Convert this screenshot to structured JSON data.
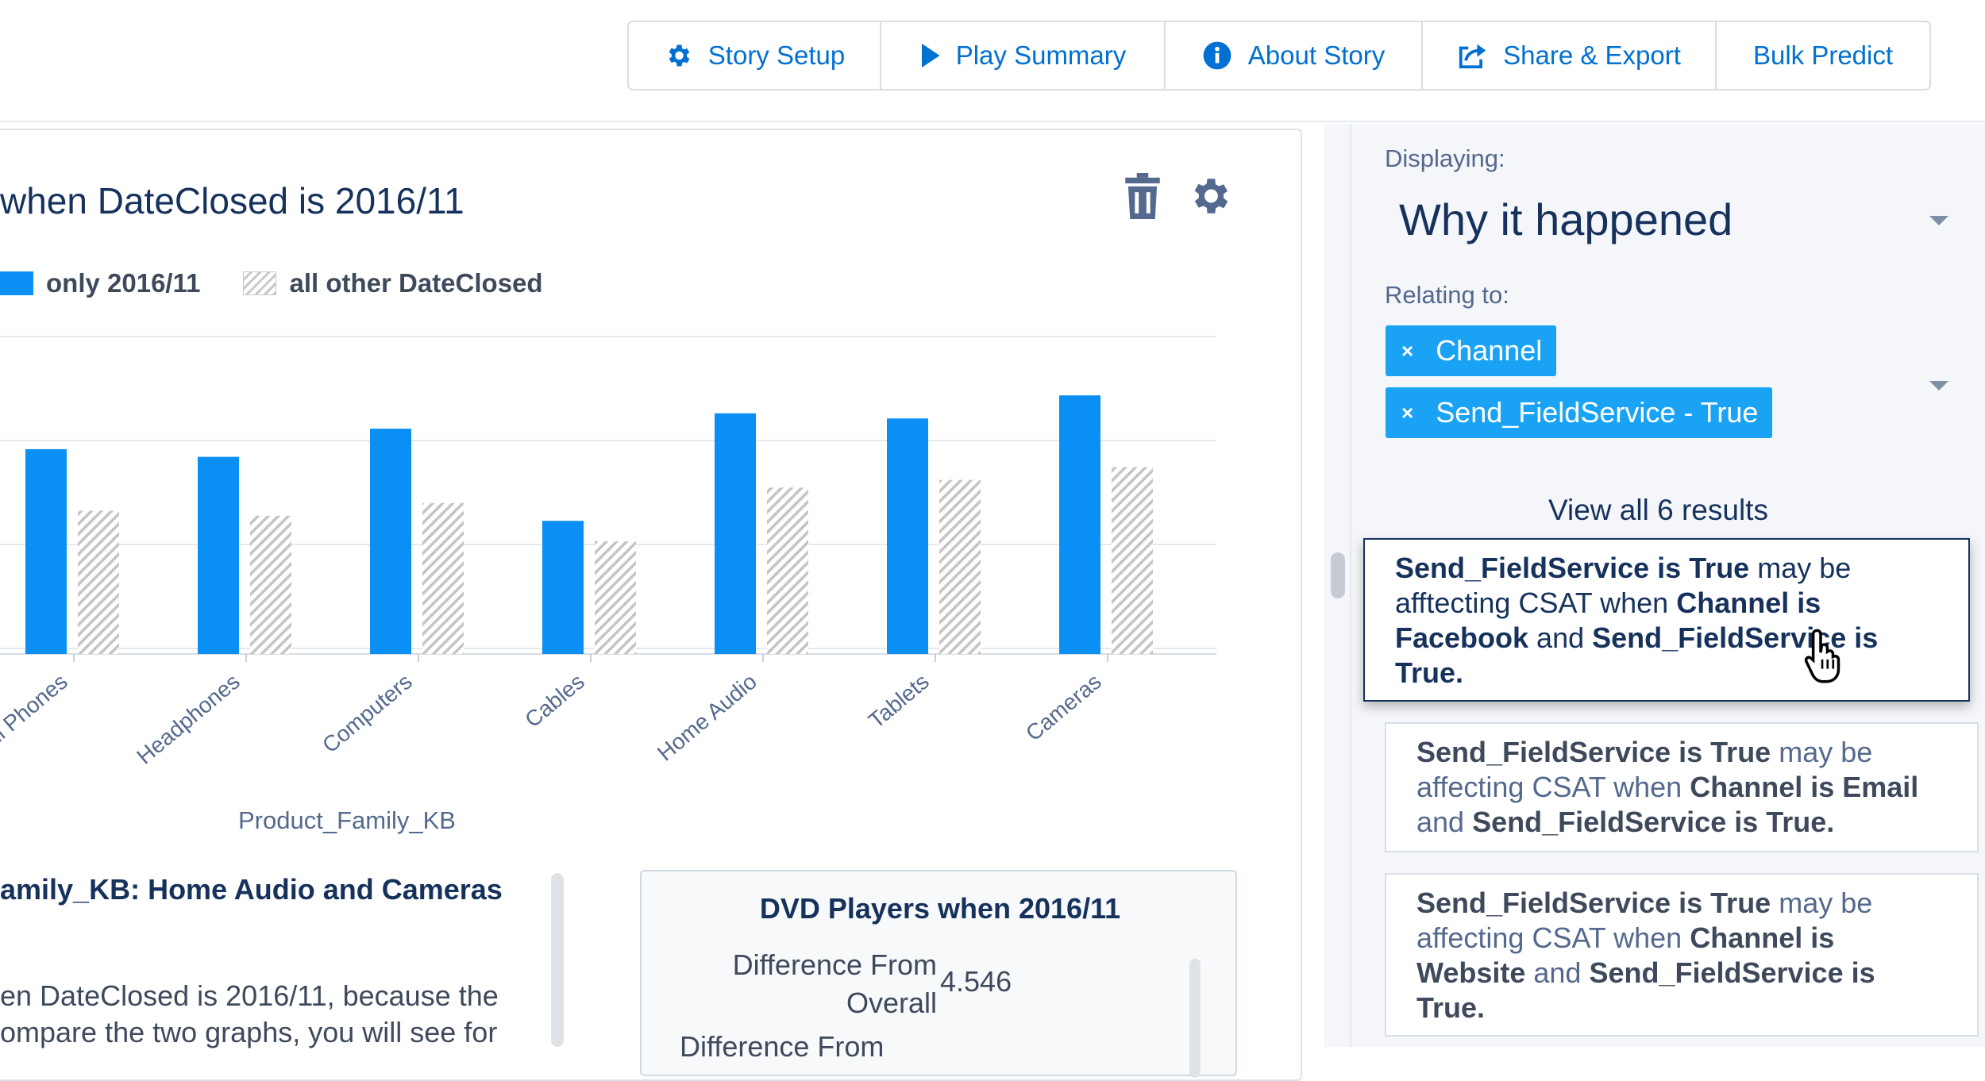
{
  "toolbar": {
    "buttons": [
      {
        "label": "Story Setup",
        "icon": "gear-icon"
      },
      {
        "label": "Play Summary",
        "icon": "play-icon"
      },
      {
        "label": "About Story",
        "icon": "info-icon"
      },
      {
        "label": "Share & Export",
        "icon": "share-icon"
      },
      {
        "label": "Bulk Predict",
        "icon": ""
      }
    ]
  },
  "chart_panel": {
    "title": "when DateClosed is 2016/11",
    "delete_icon": "trash-icon",
    "settings_icon": "gear-icon"
  },
  "chart_data": {
    "type": "bar",
    "title": "when DateClosed is 2016/11",
    "xlabel": "Product_Family_KB",
    "ylabel": "",
    "categories": [
      "Cell Phones",
      "Headphones",
      "Computers",
      "Cables",
      "Home Audio",
      "Tablets",
      "Cameras"
    ],
    "series": [
      {
        "name": "only 2016/11",
        "values": [
          4.0,
          3.85,
          4.4,
          2.6,
          4.7,
          4.6,
          5.05
        ],
        "color": "#0a8ff5"
      },
      {
        "name": "all other DateClosed",
        "values": [
          2.8,
          2.7,
          2.95,
          2.2,
          3.25,
          3.4,
          3.65
        ],
        "color": "#c8c8c8",
        "pattern": "hatched"
      }
    ],
    "ylim": [
      0,
      6.2
    ],
    "grid": true,
    "legend": "top-left"
  },
  "insight": {
    "title": "amily_KB: Home Audio and Cameras",
    "line1": "en DateClosed is 2016/11, because the",
    "line2": "ompare the two graphs, you will see for"
  },
  "dvd_card": {
    "title": "DVD Players when 2016/11",
    "label_line1": "Difference From",
    "label_line2": "Overall",
    "value": "4.546",
    "next_label": "Difference From"
  },
  "side_panel": {
    "displaying_label": "Displaying:",
    "displaying_value": "Why it happened",
    "relating_label": "Relating to:",
    "pills": [
      "Channel",
      "Send_FieldService - True"
    ],
    "view_all": "View all 6 results",
    "results": [
      [
        {
          "t": "Send_FieldService is True",
          "b": true
        },
        {
          "t": " may be afftecting CSAT when ",
          "b": false
        },
        {
          "t": "Channel is Facebook",
          "b": true
        },
        {
          "t": " and ",
          "b": false
        },
        {
          "t": "Send_FieldService is True.",
          "b": true
        }
      ],
      [
        {
          "t": "Send_FieldService is True",
          "b": true
        },
        {
          "t": " may be affecting CSAT when ",
          "b": false
        },
        {
          "t": "Channel is Email",
          "b": true
        },
        {
          "t": " and ",
          "b": false
        },
        {
          "t": "Send_FieldService is True.",
          "b": true
        }
      ],
      [
        {
          "t": "Send_FieldService is True",
          "b": true
        },
        {
          "t": " may be affecting CSAT when ",
          "b": false
        },
        {
          "t": "Channel is Website",
          "b": true
        },
        {
          "t": " and ",
          "b": false
        },
        {
          "t": "Send_FieldService is True.",
          "b": true
        }
      ]
    ]
  }
}
